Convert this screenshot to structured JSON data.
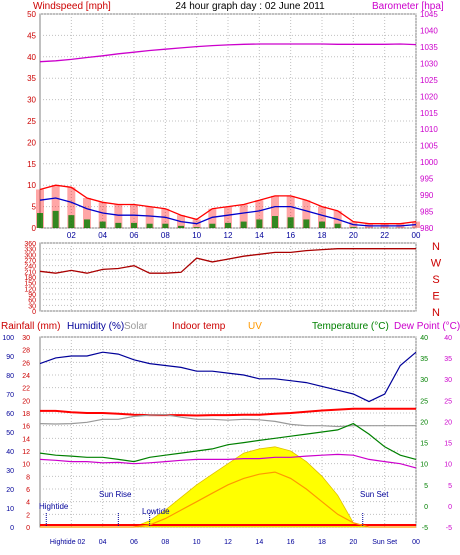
{
  "title": "24 hour graph day : 02 June 2011",
  "colors": {
    "wind": "#cc0000",
    "gust": "#ff0000",
    "avg": "#0000cc",
    "mean": "#008000",
    "baro": "#cc00cc",
    "dir": "#aa0000",
    "rain": "#ff0000",
    "hum": "#000099",
    "solar": "#999999",
    "indoor": "#ff0000",
    "uv": "#ff9900",
    "temp": "#008000",
    "dew": "#cc00cc",
    "sun": "#ffff00",
    "sunEdge": "#e0c000",
    "grid": "#c0c0c0"
  },
  "chart_data": [
    {
      "type": "line",
      "title": "24 hour graph day : 02 June 2011",
      "ylabel": "Windspeed [mph]",
      "ylabel_right": "Barometer [hpa]",
      "ylim": [
        0,
        50
      ],
      "ylim_right": [
        980,
        1045
      ],
      "y_ticks": [
        0,
        5,
        10,
        15,
        20,
        25,
        30,
        35,
        40,
        45,
        50
      ],
      "y_right_ticks": [
        980,
        985,
        990,
        995,
        1000,
        1005,
        1010,
        1015,
        1020,
        1025,
        1030,
        1035,
        1040,
        1045
      ],
      "x_ticks": [
        "02",
        "04",
        "06",
        "08",
        "10",
        "12",
        "14",
        "16",
        "18",
        "20",
        "22",
        "00"
      ],
      "x_hours": [
        0,
        1,
        2,
        3,
        4,
        5,
        6,
        7,
        8,
        9,
        10,
        11,
        12,
        13,
        14,
        15,
        16,
        17,
        18,
        19,
        20,
        21,
        22,
        23,
        24
      ],
      "series": [
        {
          "name": "Barometer [hpa]",
          "axis": "right",
          "values": [
            1030.5,
            1030.8,
            1031.2,
            1031.8,
            1032.3,
            1032.9,
            1033.4,
            1033.9,
            1034.3,
            1034.7,
            1035.1,
            1035.4,
            1035.6,
            1035.8,
            1035.9,
            1035.9,
            1035.9,
            1035.9,
            1035.9,
            1035.8,
            1035.8,
            1035.8,
            1035.8,
            1035.9,
            1035.7
          ]
        },
        {
          "name": "Gust",
          "axis": "left",
          "values": [
            9,
            10,
            9.5,
            7,
            6,
            5.5,
            5.5,
            5,
            4.5,
            3,
            2,
            4.5,
            5,
            5.5,
            6.5,
            7.5,
            7.5,
            6.5,
            5,
            4,
            1.5,
            1,
            1,
            1,
            1.5
          ]
        },
        {
          "name": "Average",
          "axis": "left",
          "values": [
            6.5,
            7,
            6,
            4.5,
            3.5,
            3,
            3,
            2.8,
            2.5,
            1.5,
            1,
            2.5,
            3,
            3.5,
            4,
            5,
            5,
            4,
            3,
            2,
            0.8,
            0.5,
            0.5,
            0.5,
            0.8
          ]
        },
        {
          "name": "Mean",
          "axis": "left",
          "values": [
            3.5,
            4,
            3,
            2,
            1.5,
            1.2,
            1.2,
            1,
            1,
            0.5,
            0.2,
            1,
            1.2,
            1.5,
            2,
            2.8,
            2.5,
            2,
            1.5,
            1,
            0.2,
            0,
            0,
            0,
            0
          ]
        }
      ]
    },
    {
      "type": "line",
      "ylim": [
        0,
        360
      ],
      "y_ticks": [
        0,
        30,
        60,
        90,
        120,
        150,
        180,
        210,
        240,
        270,
        300,
        330,
        360
      ],
      "y_tick_labels": [
        "0",
        "30",
        "60",
        "90",
        "120",
        "150",
        "180",
        "210",
        "240",
        "270",
        "300",
        "330",
        "360"
      ],
      "compass": [
        "N",
        "W",
        "S",
        "E",
        "N"
      ],
      "x_ticks": [
        "02",
        "04",
        "06",
        "08",
        "10",
        "12",
        "14",
        "16",
        "18",
        "20",
        "22",
        "00"
      ],
      "series": [
        {
          "name": "Wind direction",
          "values": [
            210,
            200,
            215,
            200,
            220,
            225,
            240,
            200,
            200,
            205,
            280,
            260,
            275,
            290,
            300,
            310,
            310,
            320,
            325,
            330,
            330,
            330,
            330,
            330,
            330
          ]
        }
      ]
    },
    {
      "type": "area",
      "ylabels": [
        "Rainfall (mm)",
        "Humidity (%)",
        "Solar",
        "Indoor temp",
        "UV",
        "Temperature (°C)",
        "Dew Point (°C)"
      ],
      "hum_ticks": [
        0,
        10,
        20,
        30,
        40,
        50,
        60,
        70,
        80,
        90,
        100
      ],
      "rain_ticks": [
        "0",
        "2",
        "4",
        "6",
        "8",
        "10",
        "12",
        "14",
        "16",
        "18",
        "20",
        "22",
        "24",
        "26",
        "28",
        "30"
      ],
      "temp_ticks": [
        -5,
        0,
        5,
        10,
        15,
        20,
        25,
        30,
        35,
        40
      ],
      "x_tick_labels": [
        "Hightide 02",
        "04",
        "06",
        "08",
        "10",
        "12",
        "14",
        "16",
        "18",
        "20",
        "Sun Set",
        "00"
      ],
      "annotations": [
        "Hightide",
        "Sun Rise",
        "Lowtide",
        "Sun Set"
      ],
      "series": [
        {
          "name": "Humidity (%)",
          "axis": "hum",
          "values": [
            86,
            89,
            90,
            90,
            92,
            91,
            88,
            86,
            85,
            84,
            82,
            82,
            81,
            80,
            78,
            78,
            77,
            76,
            74,
            72,
            70,
            66,
            70,
            85,
            92
          ]
        },
        {
          "name": "Indoor temp",
          "axis": "temp",
          "values": [
            22.5,
            22.5,
            22.2,
            22,
            22,
            21.8,
            21.6,
            21.5,
            21.5,
            21.5,
            21.4,
            21.5,
            21.5,
            21.6,
            21.6,
            21.8,
            22,
            22.3,
            22.6,
            22.8,
            23,
            23,
            23,
            23,
            23
          ]
        },
        {
          "name": "Solar",
          "axis": "temp",
          "values": [
            19.5,
            19.4,
            19.5,
            19.8,
            20.5,
            20.5,
            21.2,
            21.5,
            21.6,
            21,
            20.5,
            20.5,
            20.3,
            20.5,
            20.4,
            20,
            19.3,
            19,
            19,
            18.8,
            19,
            19,
            19,
            19,
            19
          ]
        },
        {
          "name": "Temperature (°C)",
          "axis": "temp",
          "values": [
            12.5,
            12,
            11.8,
            11.5,
            11.5,
            11,
            10.5,
            11.5,
            12,
            12.5,
            13,
            13.5,
            14.5,
            15,
            15.5,
            16,
            16.5,
            17,
            17.5,
            18,
            19.5,
            17,
            14,
            12,
            11
          ]
        },
        {
          "name": "Dew Point (°C)",
          "axis": "temp",
          "values": [
            11,
            10.8,
            10.5,
            10.5,
            10.2,
            10.3,
            10,
            10.2,
            10.5,
            10.8,
            11,
            11,
            11,
            11.2,
            11.2,
            11.5,
            11.5,
            11.8,
            12,
            12.2,
            12,
            11,
            10.5,
            10,
            9
          ]
        },
        {
          "name": "UV",
          "axis": "temp",
          "values": [
            -5,
            -5,
            -5,
            -5,
            -5,
            -5,
            -5,
            -4.5,
            -3,
            -1,
            1,
            3,
            5,
            6.5,
            7.5,
            8,
            6.5,
            4,
            1,
            -2,
            -4,
            -5,
            -5,
            -5,
            -5
          ]
        },
        {
          "name": "Sun",
          "axis": "temp",
          "values": [
            -5,
            -5,
            -5,
            -5,
            -5,
            -5,
            -5,
            -3.5,
            -1,
            2,
            5,
            7.5,
            10,
            12.5,
            13.5,
            14,
            13,
            10.5,
            7,
            2.5,
            -4,
            -5,
            -5,
            -5,
            -5
          ]
        }
      ]
    }
  ]
}
